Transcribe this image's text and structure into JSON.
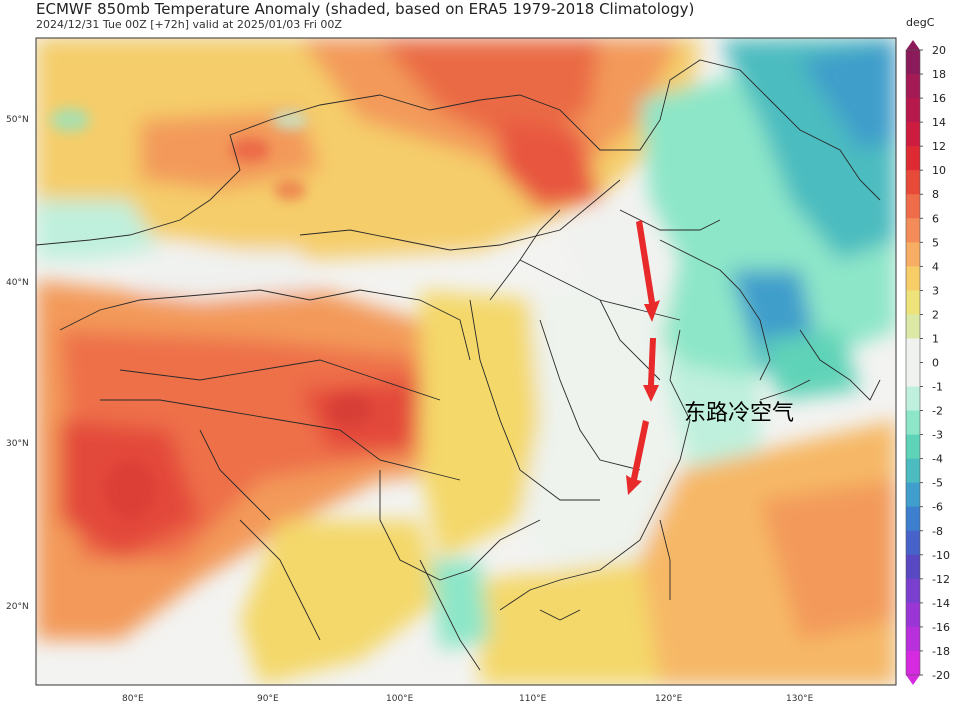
{
  "header": {
    "title": "ECMWF 850mb Temperature Anomaly (shaded, based on ERA5 1979-2018 Climatology)",
    "subtitle": "2024/12/31 Tue 00Z [+72h] valid at 2025/01/03 Fri 00Z"
  },
  "colorbar": {
    "unit": "degC",
    "levels": [
      "20",
      "18",
      "16",
      "14",
      "12",
      "10",
      "8",
      "6",
      "5",
      "4",
      "3",
      "2",
      "1",
      "0",
      "-1",
      "-2",
      "-3",
      "-4",
      "-5",
      "-6",
      "-8",
      "-10",
      "-12",
      "-14",
      "-16",
      "-18",
      "-20"
    ],
    "colors": [
      "#8b1a5a",
      "#a31a55",
      "#b8194c",
      "#cc1c3f",
      "#dd2a33",
      "#e84a3a",
      "#ef6c4a",
      "#f48c59",
      "#f7ad63",
      "#f7cd67",
      "#eee37a",
      "#dbe8a6",
      "#f0f2f0",
      "#f0f2f0",
      "#bff0dd",
      "#8de6c8",
      "#5fd3b7",
      "#4cbcc0",
      "#3f9ecb",
      "#3d7fce",
      "#4763c9",
      "#5849c3",
      "#7a3fcf",
      "#9a36d6",
      "#b82fdc",
      "#d62ae1"
    ]
  },
  "axes": {
    "lat_labels": [
      "50°N",
      "40°N",
      "30°N",
      "20°N"
    ],
    "lon_labels": [
      "80°E",
      "90°E",
      "100°E",
      "110°E",
      "120°E",
      "130°E"
    ]
  },
  "annotation": {
    "text": "东路冷空气",
    "arrow_color": "#e82a2a"
  }
}
